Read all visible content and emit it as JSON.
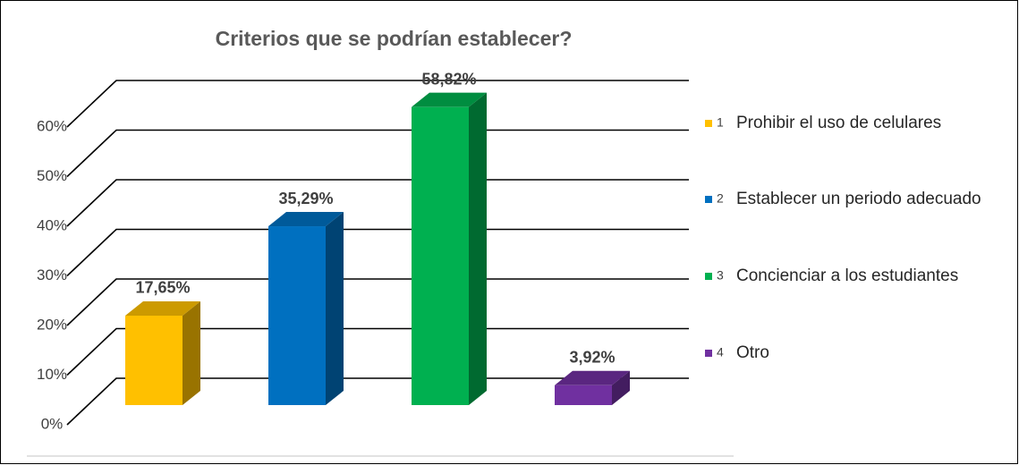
{
  "chart_data": {
    "type": "bar3d",
    "title": "Criterios que se podrían establecer?",
    "categories": [
      "Prohibir el uso de celulares",
      "Establecer un periodo adecuado",
      "Concienciar a los estudiantes",
      "Otro"
    ],
    "category_numbers": [
      1,
      2,
      3,
      4
    ],
    "values": [
      17.65,
      35.29,
      58.82,
      3.92
    ],
    "value_labels": [
      "17,65%",
      "35,29%",
      "58,82%",
      "3,92%"
    ],
    "colors": [
      "#ffc000",
      "#0070c0",
      "#00b050",
      "#7030a0"
    ],
    "ylim": [
      0,
      60
    ],
    "yticks": [
      {
        "value": 0,
        "label": "0%"
      },
      {
        "value": 10,
        "label": "10%"
      },
      {
        "value": 20,
        "label": "20%"
      },
      {
        "value": 30,
        "label": "30%"
      },
      {
        "value": 40,
        "label": "40%"
      },
      {
        "value": 50,
        "label": "50%"
      },
      {
        "value": 60,
        "label": "60%"
      }
    ],
    "grid": true,
    "legend": "right"
  }
}
